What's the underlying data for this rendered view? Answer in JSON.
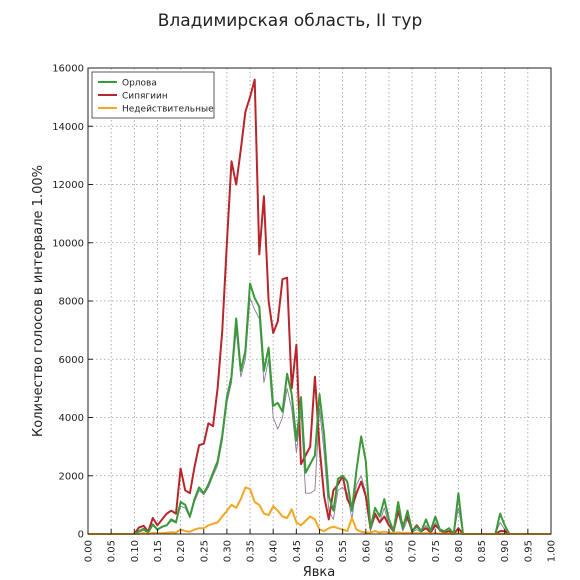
{
  "chart_data": {
    "type": "line",
    "title": "Владимирская область, II тур",
    "xlabel": "Явка",
    "ylabel": "Количество голосов в интервале 1.00%",
    "xlim": [
      0.0,
      1.0
    ],
    "ylim": [
      0,
      16000
    ],
    "xticks": [
      "0.00",
      "0.05",
      "0.10",
      "0.15",
      "0.20",
      "0.25",
      "0.30",
      "0.35",
      "0.40",
      "0.45",
      "0.50",
      "0.55",
      "0.60",
      "0.65",
      "0.70",
      "0.75",
      "0.80",
      "0.85",
      "0.90",
      "0.95",
      "1.00"
    ],
    "yticks": [
      "0",
      "2000",
      "4000",
      "6000",
      "8000",
      "10000",
      "12000",
      "14000",
      "16000"
    ],
    "grid": true,
    "legend_position": "top-left",
    "series": [
      {
        "name": "Орлова",
        "color": "#3a9a3a",
        "points": [
          [
            0.0,
            0
          ],
          [
            0.1,
            0
          ],
          [
            0.11,
            100
          ],
          [
            0.12,
            180
          ],
          [
            0.13,
            50
          ],
          [
            0.14,
            330
          ],
          [
            0.15,
            150
          ],
          [
            0.16,
            250
          ],
          [
            0.17,
            300
          ],
          [
            0.18,
            500
          ],
          [
            0.19,
            400
          ],
          [
            0.2,
            1100
          ],
          [
            0.21,
            1000
          ],
          [
            0.22,
            600
          ],
          [
            0.23,
            1200
          ],
          [
            0.24,
            1600
          ],
          [
            0.25,
            1400
          ],
          [
            0.26,
            1700
          ],
          [
            0.27,
            2100
          ],
          [
            0.28,
            2500
          ],
          [
            0.29,
            3400
          ],
          [
            0.3,
            4700
          ],
          [
            0.31,
            5400
          ],
          [
            0.32,
            7400
          ],
          [
            0.33,
            5600
          ],
          [
            0.34,
            6300
          ],
          [
            0.35,
            8600
          ],
          [
            0.36,
            8100
          ],
          [
            0.37,
            7800
          ],
          [
            0.38,
            5600
          ],
          [
            0.39,
            6400
          ],
          [
            0.4,
            4400
          ],
          [
            0.41,
            4500
          ],
          [
            0.42,
            4200
          ],
          [
            0.43,
            5500
          ],
          [
            0.44,
            4800
          ],
          [
            0.45,
            3200
          ],
          [
            0.46,
            4700
          ],
          [
            0.47,
            2100
          ],
          [
            0.48,
            2400
          ],
          [
            0.49,
            2700
          ],
          [
            0.5,
            4800
          ],
          [
            0.51,
            3400
          ],
          [
            0.52,
            1300
          ],
          [
            0.53,
            800
          ],
          [
            0.54,
            1900
          ],
          [
            0.55,
            2000
          ],
          [
            0.56,
            1800
          ],
          [
            0.57,
            800
          ],
          [
            0.58,
            2200
          ],
          [
            0.59,
            3350
          ],
          [
            0.6,
            2500
          ],
          [
            0.61,
            200
          ],
          [
            0.62,
            900
          ],
          [
            0.63,
            600
          ],
          [
            0.64,
            1200
          ],
          [
            0.65,
            500
          ],
          [
            0.66,
            100
          ],
          [
            0.67,
            1100
          ],
          [
            0.68,
            200
          ],
          [
            0.69,
            800
          ],
          [
            0.7,
            100
          ],
          [
            0.71,
            250
          ],
          [
            0.72,
            100
          ],
          [
            0.73,
            500
          ],
          [
            0.74,
            100
          ],
          [
            0.75,
            600
          ],
          [
            0.76,
            150
          ],
          [
            0.77,
            100
          ],
          [
            0.78,
            200
          ],
          [
            0.79,
            0
          ],
          [
            0.8,
            1400
          ],
          [
            0.81,
            0
          ],
          [
            0.88,
            0
          ],
          [
            0.89,
            700
          ],
          [
            0.9,
            300
          ],
          [
            0.91,
            0
          ],
          [
            1.0,
            0
          ]
        ]
      },
      {
        "name": "Сипягиин",
        "color": "#b8262b",
        "points": [
          [
            0.0,
            0
          ],
          [
            0.1,
            0
          ],
          [
            0.11,
            220
          ],
          [
            0.12,
            280
          ],
          [
            0.13,
            80
          ],
          [
            0.14,
            550
          ],
          [
            0.15,
            300
          ],
          [
            0.16,
            500
          ],
          [
            0.17,
            700
          ],
          [
            0.18,
            800
          ],
          [
            0.19,
            700
          ],
          [
            0.2,
            2250
          ],
          [
            0.21,
            1500
          ],
          [
            0.22,
            1400
          ],
          [
            0.23,
            2300
          ],
          [
            0.24,
            3050
          ],
          [
            0.25,
            3100
          ],
          [
            0.26,
            3800
          ],
          [
            0.27,
            3700
          ],
          [
            0.28,
            5000
          ],
          [
            0.29,
            7000
          ],
          [
            0.3,
            10000
          ],
          [
            0.31,
            12800
          ],
          [
            0.32,
            12000
          ],
          [
            0.33,
            13200
          ],
          [
            0.34,
            14500
          ],
          [
            0.35,
            15000
          ],
          [
            0.36,
            15600
          ],
          [
            0.37,
            9600
          ],
          [
            0.38,
            11600
          ],
          [
            0.39,
            8000
          ],
          [
            0.4,
            6900
          ],
          [
            0.41,
            7300
          ],
          [
            0.42,
            8750
          ],
          [
            0.43,
            8800
          ],
          [
            0.44,
            5000
          ],
          [
            0.45,
            6500
          ],
          [
            0.46,
            2400
          ],
          [
            0.47,
            2700
          ],
          [
            0.48,
            3000
          ],
          [
            0.49,
            5400
          ],
          [
            0.5,
            3000
          ],
          [
            0.51,
            1300
          ],
          [
            0.52,
            500
          ],
          [
            0.53,
            1500
          ],
          [
            0.54,
            1700
          ],
          [
            0.55,
            2000
          ],
          [
            0.56,
            1200
          ],
          [
            0.57,
            900
          ],
          [
            0.58,
            1400
          ],
          [
            0.59,
            1800
          ],
          [
            0.6,
            1300
          ],
          [
            0.61,
            200
          ],
          [
            0.62,
            700
          ],
          [
            0.63,
            400
          ],
          [
            0.64,
            600
          ],
          [
            0.65,
            300
          ],
          [
            0.66,
            100
          ],
          [
            0.67,
            800
          ],
          [
            0.68,
            300
          ],
          [
            0.69,
            600
          ],
          [
            0.7,
            100
          ],
          [
            0.71,
            300
          ],
          [
            0.72,
            100
          ],
          [
            0.73,
            200
          ],
          [
            0.74,
            50
          ],
          [
            0.75,
            300
          ],
          [
            0.76,
            150
          ],
          [
            0.77,
            50
          ],
          [
            0.78,
            100
          ],
          [
            0.79,
            0
          ],
          [
            0.8,
            200
          ],
          [
            0.81,
            0
          ],
          [
            0.88,
            0
          ],
          [
            0.89,
            100
          ],
          [
            0.9,
            100
          ],
          [
            0.91,
            0
          ],
          [
            1.0,
            0
          ]
        ]
      },
      {
        "name": "Недействительные",
        "color": "#f5a623",
        "points": [
          [
            0.0,
            0
          ],
          [
            0.1,
            0
          ],
          [
            0.11,
            0
          ],
          [
            0.12,
            30
          ],
          [
            0.13,
            0
          ],
          [
            0.14,
            40
          ],
          [
            0.15,
            20
          ],
          [
            0.16,
            30
          ],
          [
            0.17,
            40
          ],
          [
            0.18,
            60
          ],
          [
            0.19,
            50
          ],
          [
            0.2,
            150
          ],
          [
            0.21,
            100
          ],
          [
            0.22,
            80
          ],
          [
            0.23,
            150
          ],
          [
            0.24,
            200
          ],
          [
            0.25,
            200
          ],
          [
            0.26,
            300
          ],
          [
            0.27,
            350
          ],
          [
            0.28,
            400
          ],
          [
            0.29,
            600
          ],
          [
            0.3,
            800
          ],
          [
            0.31,
            1000
          ],
          [
            0.32,
            900
          ],
          [
            0.33,
            1200
          ],
          [
            0.34,
            1600
          ],
          [
            0.35,
            1550
          ],
          [
            0.36,
            1100
          ],
          [
            0.37,
            1000
          ],
          [
            0.38,
            700
          ],
          [
            0.39,
            650
          ],
          [
            0.4,
            950
          ],
          [
            0.41,
            800
          ],
          [
            0.42,
            600
          ],
          [
            0.43,
            550
          ],
          [
            0.44,
            850
          ],
          [
            0.45,
            400
          ],
          [
            0.46,
            300
          ],
          [
            0.47,
            450
          ],
          [
            0.48,
            600
          ],
          [
            0.49,
            500
          ],
          [
            0.5,
            150
          ],
          [
            0.51,
            100
          ],
          [
            0.52,
            200
          ],
          [
            0.53,
            250
          ],
          [
            0.54,
            200
          ],
          [
            0.55,
            150
          ],
          [
            0.56,
            100
          ],
          [
            0.57,
            550
          ],
          [
            0.58,
            150
          ],
          [
            0.59,
            80
          ],
          [
            0.6,
            50
          ],
          [
            0.61,
            50
          ],
          [
            0.62,
            100
          ],
          [
            0.63,
            50
          ],
          [
            0.64,
            80
          ],
          [
            0.65,
            50
          ],
          [
            0.66,
            30
          ],
          [
            0.67,
            60
          ],
          [
            0.68,
            30
          ],
          [
            0.69,
            40
          ],
          [
            0.7,
            20
          ],
          [
            0.71,
            30
          ],
          [
            0.72,
            20
          ],
          [
            0.73,
            30
          ],
          [
            0.74,
            10
          ],
          [
            0.75,
            30
          ],
          [
            0.76,
            10
          ],
          [
            0.77,
            10
          ],
          [
            0.78,
            10
          ],
          [
            0.79,
            0
          ],
          [
            0.8,
            20
          ],
          [
            0.81,
            0
          ],
          [
            1.0,
            0
          ]
        ]
      }
    ],
    "total_series": {
      "color": "#8a7a9a",
      "points": [
        [
          0.0,
          0
        ],
        [
          0.1,
          0
        ],
        [
          0.12,
          120
        ],
        [
          0.13,
          40
        ],
        [
          0.14,
          300
        ],
        [
          0.15,
          140
        ],
        [
          0.16,
          230
        ],
        [
          0.17,
          280
        ],
        [
          0.18,
          450
        ],
        [
          0.19,
          380
        ],
        [
          0.2,
          950
        ],
        [
          0.21,
          900
        ],
        [
          0.22,
          550
        ],
        [
          0.23,
          1100
        ],
        [
          0.24,
          1500
        ],
        [
          0.25,
          1350
        ],
        [
          0.26,
          1600
        ],
        [
          0.27,
          2000
        ],
        [
          0.28,
          2350
        ],
        [
          0.29,
          3200
        ],
        [
          0.3,
          4500
        ],
        [
          0.31,
          5200
        ],
        [
          0.32,
          7000
        ],
        [
          0.33,
          5400
        ],
        [
          0.34,
          6000
        ],
        [
          0.35,
          8100
        ],
        [
          0.36,
          7700
        ],
        [
          0.37,
          7400
        ],
        [
          0.38,
          5200
        ],
        [
          0.39,
          6000
        ],
        [
          0.4,
          4000
        ],
        [
          0.41,
          3600
        ],
        [
          0.42,
          4000
        ],
        [
          0.43,
          5000
        ],
        [
          0.44,
          4300
        ],
        [
          0.45,
          2800
        ],
        [
          0.46,
          4200
        ],
        [
          0.47,
          1400
        ],
        [
          0.48,
          1400
        ],
        [
          0.49,
          1500
        ],
        [
          0.5,
          4300
        ],
        [
          0.51,
          2800
        ],
        [
          0.52,
          800
        ],
        [
          0.53,
          500
        ],
        [
          0.54,
          1500
        ],
        [
          0.55,
          1600
        ],
        [
          0.56,
          1400
        ],
        [
          0.57,
          500
        ],
        [
          0.58,
          1700
        ],
        [
          0.59,
          2000
        ],
        [
          0.6,
          1400
        ],
        [
          0.61,
          100
        ],
        [
          0.62,
          600
        ],
        [
          0.63,
          400
        ],
        [
          0.64,
          900
        ],
        [
          0.65,
          300
        ],
        [
          0.66,
          50
        ],
        [
          0.67,
          700
        ],
        [
          0.68,
          100
        ],
        [
          0.69,
          500
        ],
        [
          0.7,
          50
        ],
        [
          0.71,
          150
        ],
        [
          0.72,
          50
        ],
        [
          0.73,
          300
        ],
        [
          0.74,
          50
        ],
        [
          0.75,
          400
        ],
        [
          0.76,
          80
        ],
        [
          0.77,
          50
        ],
        [
          0.78,
          100
        ],
        [
          0.79,
          0
        ],
        [
          0.8,
          900
        ],
        [
          0.81,
          0
        ],
        [
          0.88,
          0
        ],
        [
          0.89,
          400
        ],
        [
          0.9,
          150
        ],
        [
          0.91,
          0
        ],
        [
          1.0,
          0
        ]
      ]
    }
  }
}
